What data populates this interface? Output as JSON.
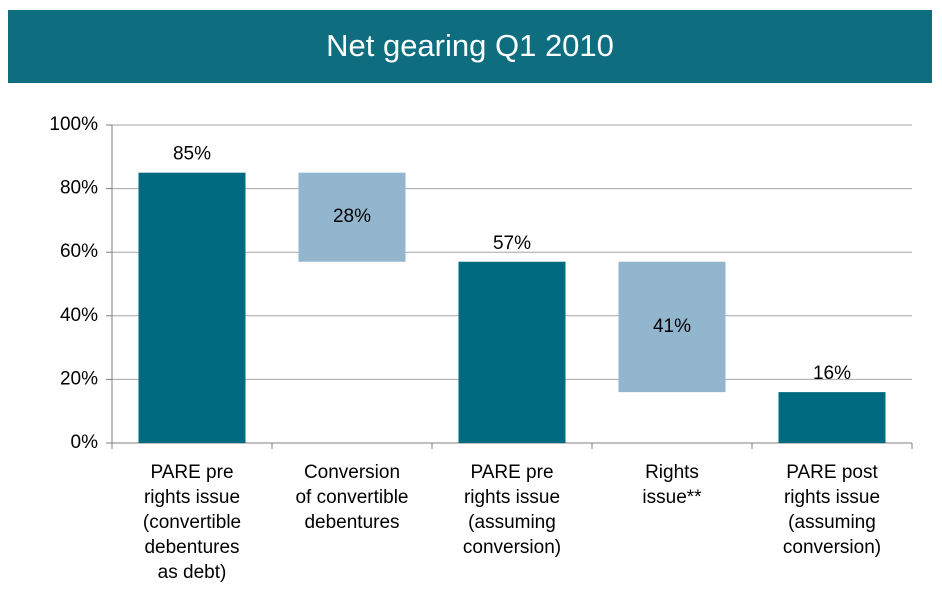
{
  "chart_data": {
    "type": "waterfall",
    "title": "Net gearing Q1 2010",
    "categories": [
      "PARE pre\nrights issue\n(convertible\ndebentures\nas debt)",
      "Conversion\nof convertible\ndebentures",
      "PARE pre\nrights issue\n(assuming\nconversion)",
      "Rights\nissue**",
      "PARE post\nrights issue\n(assuming\nconversion)"
    ],
    "values": [
      85,
      28,
      57,
      41,
      16
    ],
    "value_labels": [
      "85%",
      "28%",
      "57%",
      "41%",
      "16%"
    ],
    "measure": [
      "total",
      "decrease",
      "total",
      "decrease",
      "total"
    ],
    "colors": {
      "total": "#006b80",
      "decrease": "#93b6cf"
    },
    "ylim": [
      0,
      100
    ],
    "yticks": [
      {
        "value": 0,
        "label": "0%"
      },
      {
        "value": 20,
        "label": "20%"
      },
      {
        "value": 40,
        "label": "40%"
      },
      {
        "value": 60,
        "label": "60%"
      },
      {
        "value": 80,
        "label": "80%"
      },
      {
        "value": 100,
        "label": "100%"
      }
    ],
    "grid": true
  }
}
